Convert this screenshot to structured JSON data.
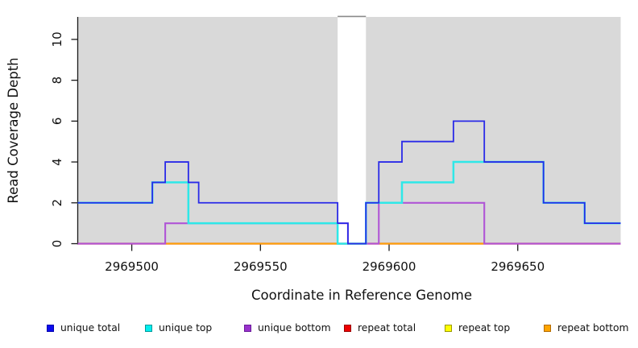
{
  "figure": {
    "xlabel": "Coordinate in Reference Genome",
    "ylabel": "Read Coverage Depth"
  },
  "chart_data": {
    "type": "line",
    "subtype": "step-coverage",
    "title": "",
    "xlabel": "Coordinate in Reference Genome",
    "ylabel": "Read Coverage Depth",
    "xlim": [
      2969479,
      2969690
    ],
    "ylim": [
      0,
      11.1
    ],
    "xticks": [
      2969500,
      2969550,
      2969600,
      2969650
    ],
    "yticks": [
      0,
      2,
      4,
      6,
      8,
      10
    ],
    "grid": false,
    "plot_background": "#d9d9d9",
    "no_data_gap": {
      "x_start": 2969580,
      "x_end": 2969591,
      "fill": "#ffffff",
      "top_border": "#8a8a8a"
    },
    "axis_color": "#1a1a1a",
    "series": [
      {
        "name": "repeat total",
        "color": "#e01a1a",
        "width": 2.2,
        "steps": [
          [
            2969479,
            0
          ],
          [
            2969690,
            0
          ]
        ]
      },
      {
        "name": "repeat top",
        "color": "#ffff00",
        "width": 2.0,
        "steps": [
          [
            2969479,
            0
          ],
          [
            2969690,
            0
          ]
        ]
      },
      {
        "name": "repeat bottom",
        "color": "#ffa305",
        "width": 1.9,
        "steps": [
          [
            2969479,
            0
          ],
          [
            2969690,
            0
          ]
        ]
      },
      {
        "name": "unique bottom",
        "color": "#b055d6",
        "width": 2.1,
        "steps": [
          [
            2969479,
            0
          ],
          [
            2969513,
            1
          ],
          [
            2969584,
            0
          ],
          [
            2969596,
            2
          ],
          [
            2969637,
            0
          ],
          [
            2969690,
            0
          ]
        ]
      },
      {
        "name": "unique top",
        "color": "#2ee8e8",
        "width": 2.5,
        "steps": [
          [
            2969479,
            2
          ],
          [
            2969508,
            3
          ],
          [
            2969522,
            1
          ],
          [
            2969580,
            0
          ],
          [
            2969591,
            2
          ],
          [
            2969605,
            3
          ],
          [
            2969625,
            4
          ],
          [
            2969660,
            2
          ],
          [
            2969676,
            1
          ],
          [
            2969690,
            1
          ]
        ]
      },
      {
        "name": "unique total",
        "color": "#2a2ae8",
        "width": 1.8,
        "steps": [
          [
            2969479,
            2
          ],
          [
            2969508,
            3
          ],
          [
            2969513,
            4
          ],
          [
            2969522,
            3
          ],
          [
            2969526,
            2
          ],
          [
            2969580,
            1
          ],
          [
            2969584,
            0
          ],
          [
            2969591,
            2
          ],
          [
            2969596,
            4
          ],
          [
            2969605,
            5
          ],
          [
            2969625,
            6
          ],
          [
            2969637,
            4
          ],
          [
            2969660,
            2
          ],
          [
            2969676,
            1
          ],
          [
            2969690,
            1
          ]
        ]
      }
    ],
    "legend": [
      {
        "label": "unique total",
        "color": "#0b0bee",
        "border": "#0000b0"
      },
      {
        "label": "unique top",
        "color": "#00eeee",
        "border": "#00999b"
      },
      {
        "label": "unique bottom",
        "color": "#9932cc",
        "border": "#6a1b9a"
      },
      {
        "label": "repeat total",
        "color": "#ee0000",
        "border": "#990000"
      },
      {
        "label": "repeat top",
        "color": "#ffff00",
        "border": "#9a9a00"
      },
      {
        "label": "repeat bottom",
        "color": "#ffa500",
        "border": "#b36b00"
      }
    ],
    "legend_position": "bottom"
  }
}
